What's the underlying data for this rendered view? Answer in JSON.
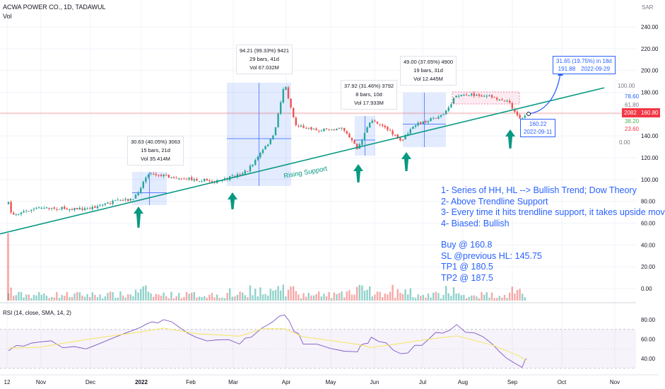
{
  "header": {
    "symbol_line": "ACWA POWER CO., 1D, TADAWUL",
    "volume_label": "Vol",
    "currency": "SAR"
  },
  "rsi": {
    "label": "RSI (14, close, SMA, 14, 2)",
    "ticks": [
      "80.00",
      "60.00",
      "40.00"
    ]
  },
  "price_axis": {
    "ticks": [
      "240.00",
      "220.00",
      "200.00",
      "180.00",
      "160.00",
      "140.00",
      "120.00",
      "100.00",
      "80.00",
      "60.00",
      "40.00",
      "20.00",
      "0.00"
    ],
    "last_price": "160.80",
    "last_price_left": "2082"
  },
  "fib_labels": [
    "100.00",
    "78.60",
    "61.80",
    "38.20",
    "23.60",
    "0.00"
  ],
  "time_axis": [
    "12",
    "Nov",
    "Dec",
    "2022",
    "Feb",
    "Mar",
    "Apr",
    "May",
    "Jun",
    "Jul",
    "Aug",
    "Sep",
    "Oct",
    "Nov"
  ],
  "measure_boxes": [
    {
      "line1": "30.63 (40.05%) 3063",
      "line2": "15 bars, 21d",
      "line3": "Vol 35.414M"
    },
    {
      "line1": "94.21 (99.33%) 9421",
      "line2": "29 bars, 41d",
      "line3": "Vol 67.032M"
    },
    {
      "line1": "37.92 (31.46%) 3792",
      "line2": "8 bars, 10d",
      "line3": "Vol 17.933M"
    },
    {
      "line1": "49.00 (37.65%) 4900",
      "line2": "19 bars, 31d",
      "line3": "Vol 12.445M"
    }
  ],
  "target_box": {
    "line1": "31.65 (19.75%) in 18d",
    "line2a": "191.88",
    "line2b": "2022-09-29"
  },
  "support_box": {
    "line1": "160.22",
    "line2": "2022-09-11"
  },
  "trendline_label": "Rising Support",
  "notes": [
    "1- Series of HH, HL --> Bullish Trend; Dow Theory",
    "2- Above Trendline Support",
    "3- Every time it hits trendline support, it takes upside mov",
    "4- Biased: Bullish",
    "",
    "Buy @ 160.8",
    "SL @previous HL: 145.75",
    "TP1 @ 180.5",
    "TP2 @ 187.5"
  ],
  "colors": {
    "up": "#26a69a",
    "down": "#ef5350",
    "trendline": "#089981",
    "annotation": "#2962ff",
    "rsi_line": "#7e57c2",
    "rsi_ma": "#f7e560"
  },
  "chart_data": {
    "type": "candlestick",
    "title": "ACWA POWER CO., 1D, TADAWUL",
    "ylabel": "SAR",
    "ylim": [
      0,
      250
    ],
    "rsi_ylim": [
      25,
      90
    ],
    "support_trendline": [
      {
        "date": "2021-10-12",
        "price": 52
      },
      {
        "date": "2022-09-20",
        "price": 170
      }
    ],
    "price_path": [
      {
        "date": "2021-10-12",
        "price": 78
      },
      {
        "date": "2021-10-14",
        "price": 68
      },
      {
        "date": "2021-11-01",
        "price": 74
      },
      {
        "date": "2021-12-01",
        "price": 73
      },
      {
        "date": "2021-12-20",
        "price": 80
      },
      {
        "date": "2022-01-01",
        "price": 82
      },
      {
        "date": "2022-01-10",
        "price": 106
      },
      {
        "date": "2022-02-01",
        "price": 101
      },
      {
        "date": "2022-02-25",
        "price": 98
      },
      {
        "date": "2022-03-15",
        "price": 108
      },
      {
        "date": "2022-04-01",
        "price": 140
      },
      {
        "date": "2022-04-08",
        "price": 189
      },
      {
        "date": "2022-04-15",
        "price": 150
      },
      {
        "date": "2022-05-01",
        "price": 145
      },
      {
        "date": "2022-05-15",
        "price": 148
      },
      {
        "date": "2022-05-25",
        "price": 128
      },
      {
        "date": "2022-06-03",
        "price": 155
      },
      {
        "date": "2022-06-10",
        "price": 150
      },
      {
        "date": "2022-06-22",
        "price": 135
      },
      {
        "date": "2022-07-01",
        "price": 150
      },
      {
        "date": "2022-07-20",
        "price": 160
      },
      {
        "date": "2022-07-28",
        "price": 178
      },
      {
        "date": "2022-08-15",
        "price": 177
      },
      {
        "date": "2022-08-30",
        "price": 172
      },
      {
        "date": "2022-09-07",
        "price": 155
      },
      {
        "date": "2022-09-11",
        "price": 160.8
      }
    ],
    "rsi_path": [
      {
        "date": "2021-10-12",
        "price": 48
      },
      {
        "date": "2021-11-01",
        "price": 57
      },
      {
        "date": "2021-12-01",
        "price": 50
      },
      {
        "date": "2022-01-05",
        "price": 72
      },
      {
        "date": "2022-01-20",
        "price": 80
      },
      {
        "date": "2022-02-10",
        "price": 62
      },
      {
        "date": "2022-03-10",
        "price": 55
      },
      {
        "date": "2022-03-25",
        "price": 72
      },
      {
        "date": "2022-04-08",
        "price": 85
      },
      {
        "date": "2022-04-20",
        "price": 55
      },
      {
        "date": "2022-05-25",
        "price": 47
      },
      {
        "date": "2022-06-03",
        "price": 62
      },
      {
        "date": "2022-06-22",
        "price": 45
      },
      {
        "date": "2022-07-10",
        "price": 60
      },
      {
        "date": "2022-07-28",
        "price": 75
      },
      {
        "date": "2022-08-20",
        "price": 55
      },
      {
        "date": "2022-09-07",
        "price": 32
      },
      {
        "date": "2022-09-11",
        "price": 40
      }
    ]
  }
}
